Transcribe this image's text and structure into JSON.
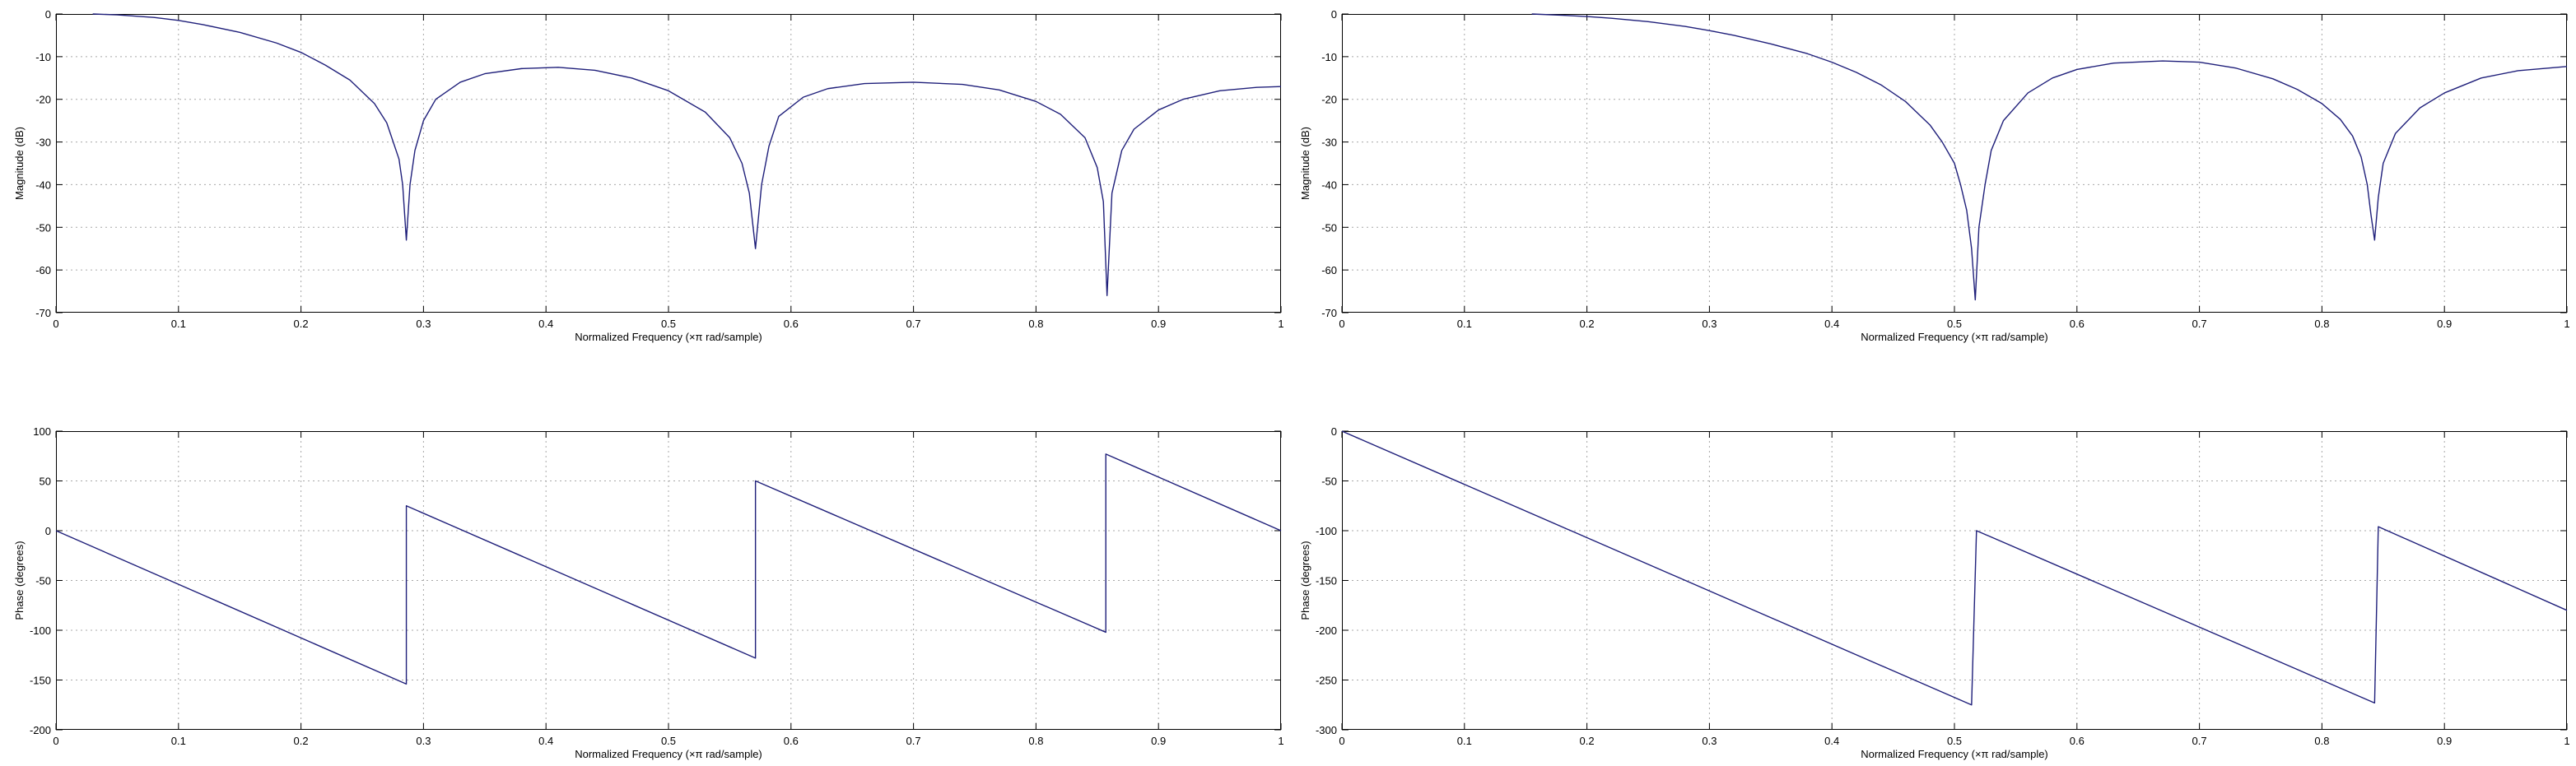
{
  "figure": {
    "background": "#ffffff",
    "line_color": "#1f1f7a",
    "grid_color": "#a8a8a8"
  },
  "chart_data": [
    {
      "id": "magnitude_left",
      "type": "line",
      "xlabel": "Normalized Frequency  (×π rad/sample)",
      "ylabel": "Magnitude (dB)",
      "xlim": [
        0,
        1
      ],
      "ylim": [
        -70,
        0
      ],
      "xticks": [
        0,
        0.1,
        0.2,
        0.3,
        0.4,
        0.5,
        0.6,
        0.7,
        0.8,
        0.9,
        1
      ],
      "xtick_labels": [
        "0",
        "0.1",
        "0.2",
        "0.3",
        "0.4",
        "0.5",
        "0.6",
        "0.7",
        "0.8",
        "0.9",
        "1"
      ],
      "yticks": [
        0,
        -10,
        -20,
        -30,
        -40,
        -50,
        -60,
        -70
      ],
      "ytick_labels": [
        "0",
        "-10",
        "-20",
        "-30",
        "-40",
        "-50",
        "-60",
        "-70"
      ],
      "grid": true,
      "series": [
        {
          "x": [
            0.03,
            0.05,
            0.08,
            0.1,
            0.12,
            0.15,
            0.18,
            0.2,
            0.22,
            0.24,
            0.26,
            0.27,
            0.28,
            0.283,
            0.286,
            0.289,
            0.293,
            0.3,
            0.31,
            0.33,
            0.35,
            0.38,
            0.41,
            0.44,
            0.47,
            0.5,
            0.53,
            0.55,
            0.56,
            0.566,
            0.571,
            0.576,
            0.582,
            0.59,
            0.61,
            0.63,
            0.66,
            0.7,
            0.74,
            0.77,
            0.8,
            0.82,
            0.84,
            0.85,
            0.855,
            0.858,
            0.862,
            0.87,
            0.88,
            0.9,
            0.92,
            0.95,
            0.98,
            1.0
          ],
          "y": [
            0,
            -0.2,
            -0.8,
            -1.5,
            -2.5,
            -4.3,
            -6.8,
            -9,
            -12,
            -15.5,
            -21,
            -25.5,
            -34,
            -40,
            -53,
            -40,
            -32,
            -25,
            -20,
            -16,
            -14,
            -12.8,
            -12.5,
            -13.2,
            -15,
            -18,
            -23,
            -29,
            -35,
            -42,
            -55,
            -40,
            -31,
            -24,
            -19.5,
            -17.5,
            -16.3,
            -16,
            -16.5,
            -17.8,
            -20.5,
            -23.5,
            -29,
            -36,
            -44,
            -66,
            -42,
            -32,
            -27,
            -22.5,
            -20,
            -18,
            -17.2,
            -17
          ]
        }
      ]
    },
    {
      "id": "magnitude_right",
      "type": "line",
      "xlabel": "Normalized Frequency  (×π rad/sample)",
      "ylabel": "Magnitude (dB)",
      "xlim": [
        0,
        1
      ],
      "ylim": [
        -70,
        0
      ],
      "xticks": [
        0,
        0.1,
        0.2,
        0.3,
        0.4,
        0.5,
        0.6,
        0.7,
        0.8,
        0.9,
        1
      ],
      "xtick_labels": [
        "0",
        "0.1",
        "0.2",
        "0.3",
        "0.4",
        "0.5",
        "0.6",
        "0.7",
        "0.8",
        "0.9",
        "1"
      ],
      "yticks": [
        0,
        -10,
        -20,
        -30,
        -40,
        -50,
        -60,
        -70
      ],
      "ytick_labels": [
        "0",
        "-10",
        "-20",
        "-30",
        "-40",
        "-50",
        "-60",
        "-70"
      ],
      "grid": true,
      "series": [
        {
          "x": [
            0.155,
            0.18,
            0.2,
            0.22,
            0.25,
            0.28,
            0.3,
            0.32,
            0.35,
            0.38,
            0.4,
            0.42,
            0.44,
            0.46,
            0.48,
            0.49,
            0.5,
            0.505,
            0.51,
            0.514,
            0.517,
            0.52,
            0.525,
            0.53,
            0.54,
            0.56,
            0.58,
            0.6,
            0.63,
            0.67,
            0.7,
            0.73,
            0.76,
            0.78,
            0.8,
            0.815,
            0.825,
            0.832,
            0.837,
            0.84,
            0.843,
            0.846,
            0.85,
            0.86,
            0.88,
            0.9,
            0.93,
            0.96,
            1.0
          ],
          "y": [
            0,
            -0.3,
            -0.6,
            -1.0,
            -1.8,
            -2.9,
            -3.9,
            -5,
            -7,
            -9.3,
            -11.3,
            -13.7,
            -16.6,
            -20.5,
            -26,
            -30,
            -35,
            -40,
            -46,
            -55,
            -67,
            -50,
            -40,
            -32,
            -25,
            -18.5,
            -15,
            -13,
            -11.5,
            -11,
            -11.3,
            -12.7,
            -15.2,
            -17.7,
            -21,
            -24.7,
            -28.6,
            -33.5,
            -40,
            -47,
            -53,
            -43,
            -35,
            -28,
            -22,
            -18.5,
            -15,
            -13.3,
            -12.3
          ]
        }
      ]
    },
    {
      "id": "phase_left",
      "type": "line",
      "xlabel": "Normalized Frequency  (×π rad/sample)",
      "ylabel": "Phase (degrees)",
      "xlim": [
        0,
        1
      ],
      "ylim": [
        -200,
        100
      ],
      "xticks": [
        0,
        0.1,
        0.2,
        0.3,
        0.4,
        0.5,
        0.6,
        0.7,
        0.8,
        0.9,
        1
      ],
      "xtick_labels": [
        "0",
        "0.1",
        "0.2",
        "0.3",
        "0.4",
        "0.5",
        "0.6",
        "0.7",
        "0.8",
        "0.9",
        "1"
      ],
      "yticks": [
        100,
        50,
        0,
        -50,
        -100,
        -150,
        -200
      ],
      "ytick_labels": [
        "100",
        "50",
        "0",
        "-50",
        "-100",
        "-150",
        "-200"
      ],
      "grid": true,
      "series": [
        {
          "x": [
            0,
            0.286,
            0.286,
            0.286,
            0.571,
            0.571,
            0.571,
            0.857,
            0.857,
            0.857,
            1.0
          ],
          "y": [
            0,
            -154,
            -154,
            25,
            -128,
            -128,
            50,
            -102,
            -102,
            77,
            0
          ]
        }
      ]
    },
    {
      "id": "phase_right",
      "type": "line",
      "xlabel": "Normalized Frequency  (×π rad/sample)",
      "ylabel": "Phase (degrees)",
      "xlim": [
        0,
        1
      ],
      "ylim": [
        -300,
        0
      ],
      "xticks": [
        0,
        0.1,
        0.2,
        0.3,
        0.4,
        0.5,
        0.6,
        0.7,
        0.8,
        0.9,
        1
      ],
      "xtick_labels": [
        "0",
        "0.1",
        "0.2",
        "0.3",
        "0.4",
        "0.5",
        "0.6",
        "0.7",
        "0.8",
        "0.9",
        "1"
      ],
      "yticks": [
        0,
        -50,
        -100,
        -150,
        -200,
        -250,
        -300
      ],
      "ytick_labels": [
        "0",
        "-50",
        "-100",
        "-150",
        "-200",
        "-250",
        "-300"
      ],
      "grid": true,
      "series": [
        {
          "x": [
            0,
            0.514,
            0.514,
            0.518,
            0.843,
            0.843,
            0.846,
            1.0
          ],
          "y": [
            0,
            -275,
            -275,
            -100,
            -273,
            -273,
            -96,
            -180
          ]
        }
      ]
    }
  ]
}
